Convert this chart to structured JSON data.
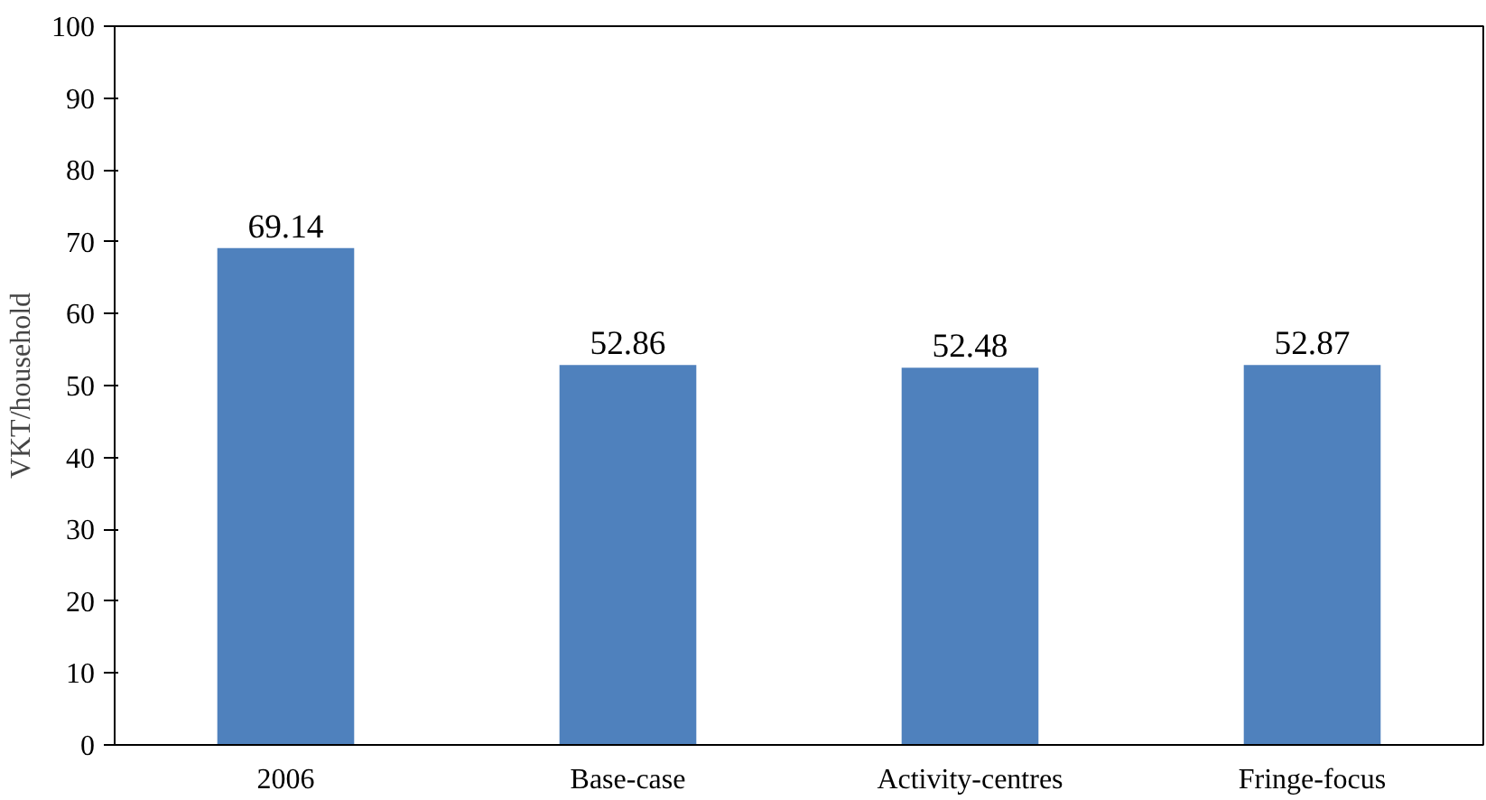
{
  "chart_data": {
    "type": "bar",
    "ylabel": "VKT/household",
    "categories": [
      "2006",
      "Base-case",
      "Activity-centres",
      "Fringe-focus"
    ],
    "values": [
      69.14,
      52.86,
      52.48,
      52.87
    ],
    "color": "#4f81bd",
    "ylim": [
      0,
      100
    ],
    "yticks": [
      0,
      10,
      20,
      30,
      40,
      50,
      60,
      70,
      80,
      90,
      100
    ],
    "data_labels": true,
    "grid": false
  }
}
